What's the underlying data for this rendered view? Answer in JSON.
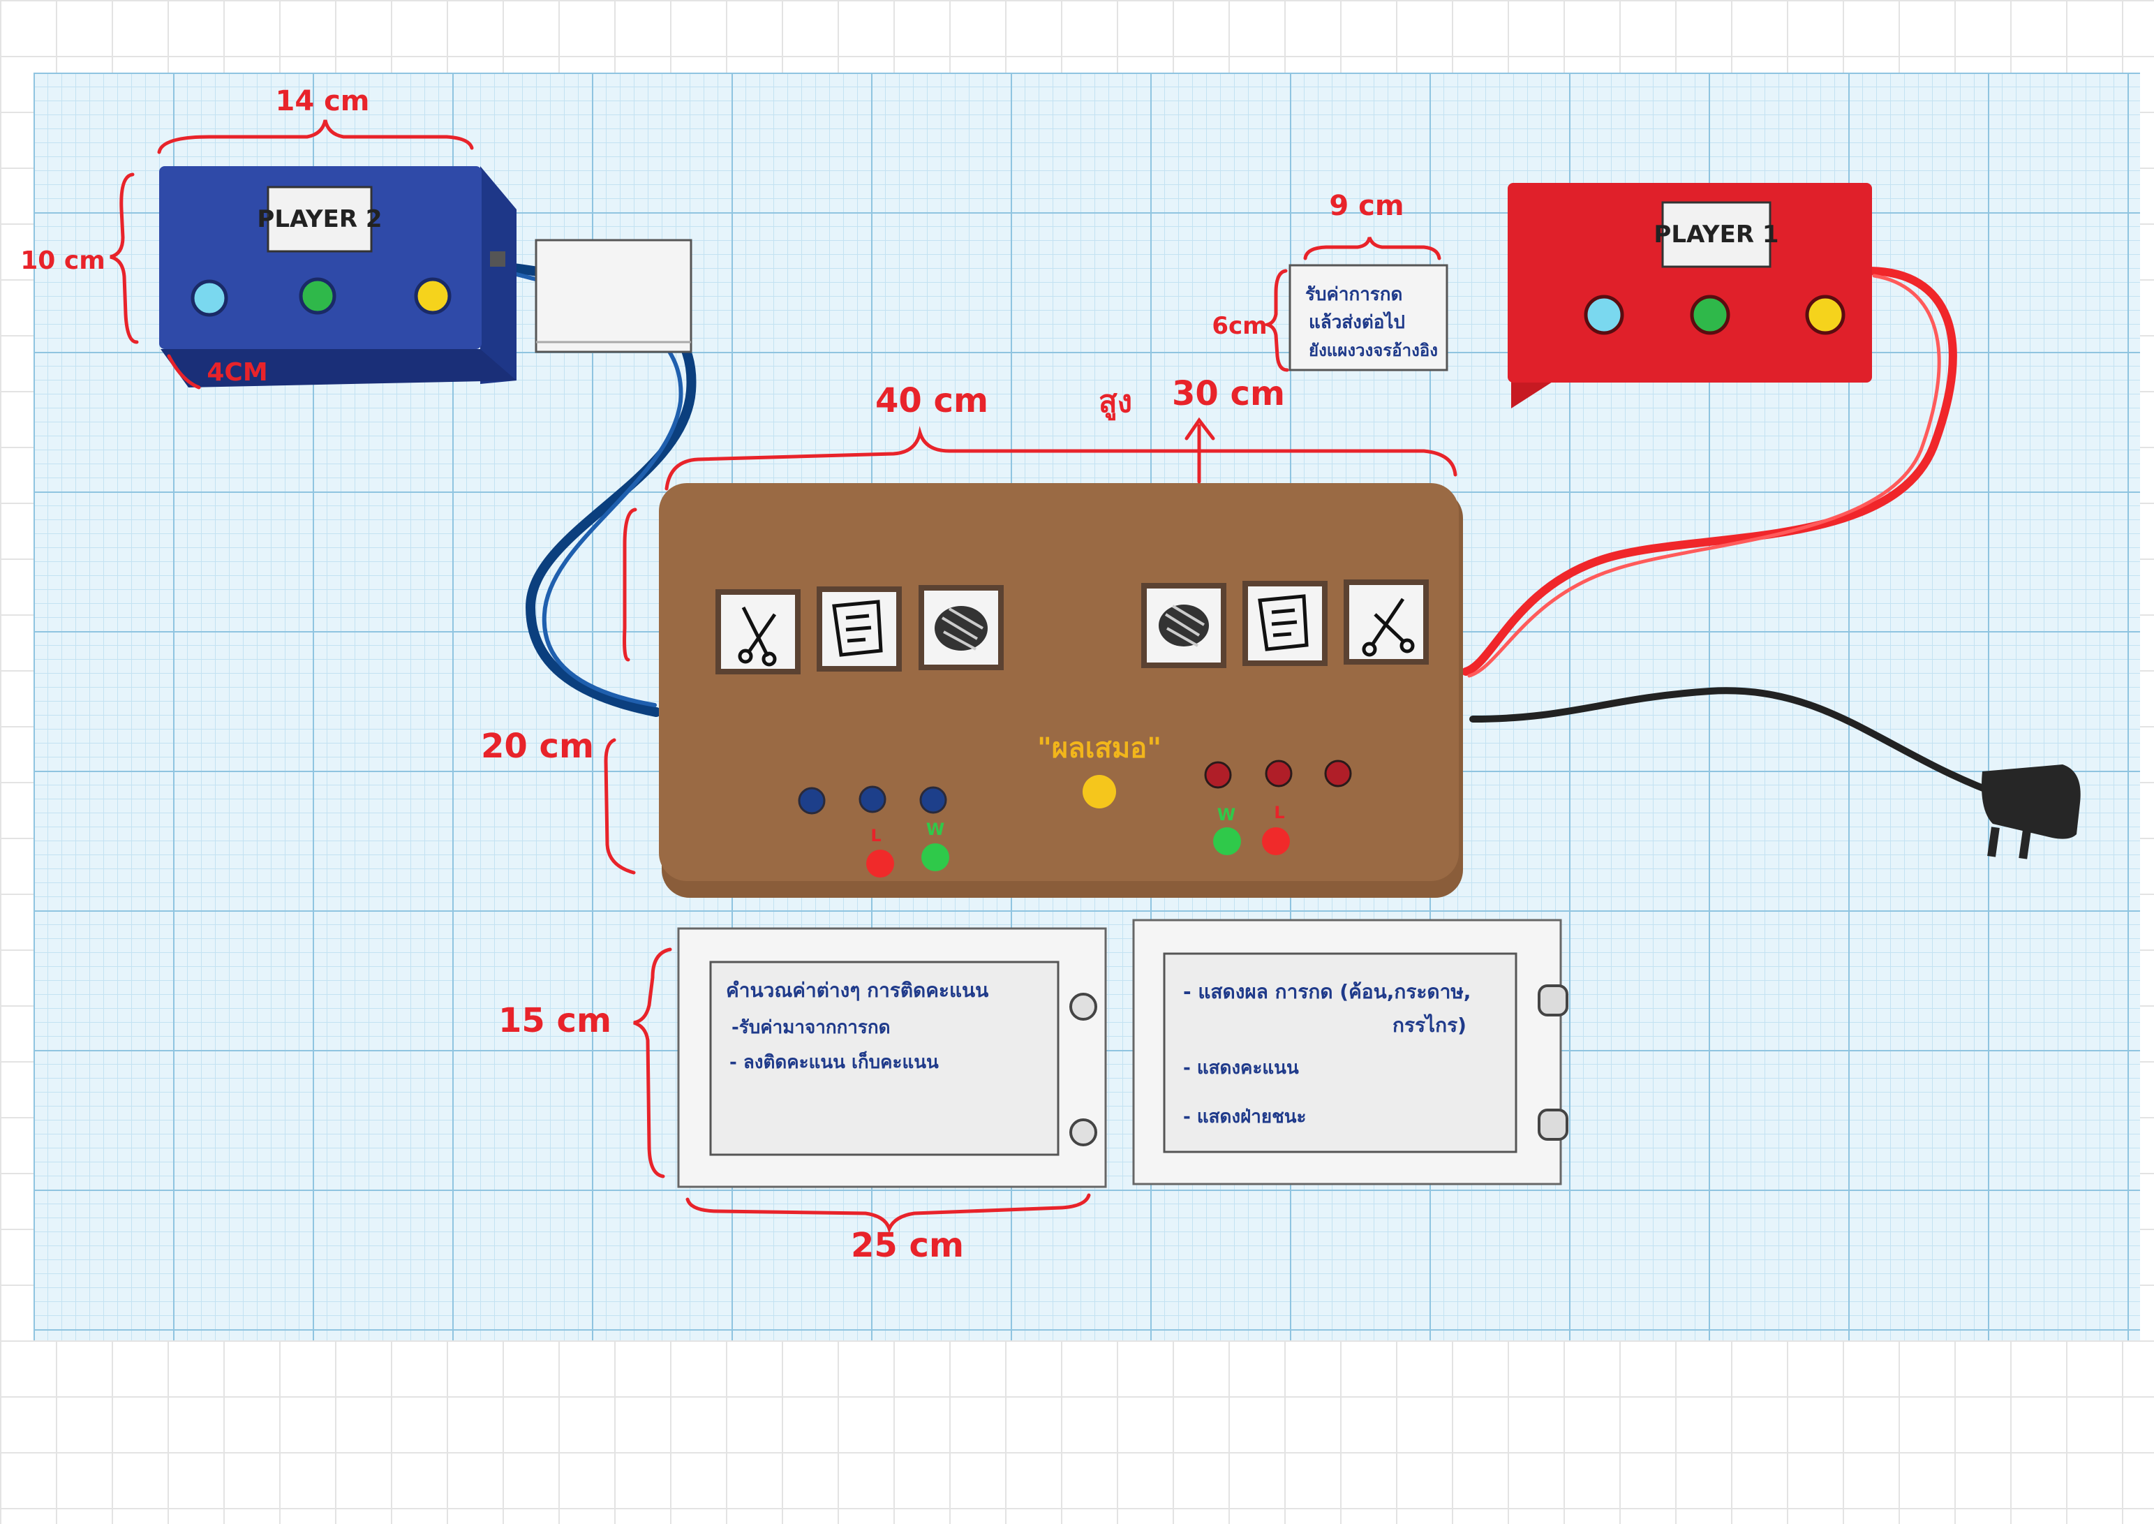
{
  "colors": {
    "dimension_red": "#e8232a",
    "ink_blue": "#1f3a8a",
    "main_box": "#9a6a44",
    "player2_box": "#2f4aa8",
    "player1_box": "#e0202a",
    "cable_blue": "#0b3f7e",
    "cable_red": "#f0262a",
    "cable_black": "#222222",
    "label_yellow": "#f2b61b",
    "led_green": "#2fc94a"
  },
  "player2": {
    "label": "PLAYER 2",
    "dim_width": "14 cm",
    "dim_height": "10 cm",
    "dim_depth": "4CM",
    "buttons": [
      "light-blue-button",
      "green-button",
      "yellow-button"
    ]
  },
  "player1": {
    "label": "PLAYER 1",
    "buttons": [
      "light-blue-button",
      "green-button",
      "yellow-button"
    ]
  },
  "note": {
    "dim_width": "9 cm",
    "dim_height": "6cm",
    "lines": [
      "รับค่าการกด",
      "แล้วส่งต่อไป",
      "ยังแผงวงจรอ้างอิง"
    ]
  },
  "main": {
    "dim_width": "40 cm",
    "dim_height": "20 cm",
    "dim_depth_label": "สูง",
    "dim_depth": "30 cm",
    "center_label": "\"ผลเสมอ\"",
    "left_icons": [
      "scissors-icon",
      "paper-icon",
      "rock-icon"
    ],
    "right_icons": [
      "rock-icon",
      "paper-icon",
      "scissors-icon"
    ],
    "left_win_letters": [
      "L",
      "W"
    ],
    "right_win_letters": [
      "W",
      "L"
    ]
  },
  "screen_left": {
    "lines": [
      "คำนวณค่าต่างๆ การติดคะแนน",
      "-รับค่ามาจากการกด",
      "- ลงติดคะแนน เก็บคะแนน"
    ]
  },
  "screen_right": {
    "lines": [
      "- แสดงผล  การกด (ค้อน,กระดาษ,",
      "กรรไกร)",
      "- แสดงคะแนน",
      "- แสดงฝ่ายชนะ"
    ]
  },
  "screens": {
    "dim_width": "25 cm",
    "dim_height": "15 cm"
  }
}
